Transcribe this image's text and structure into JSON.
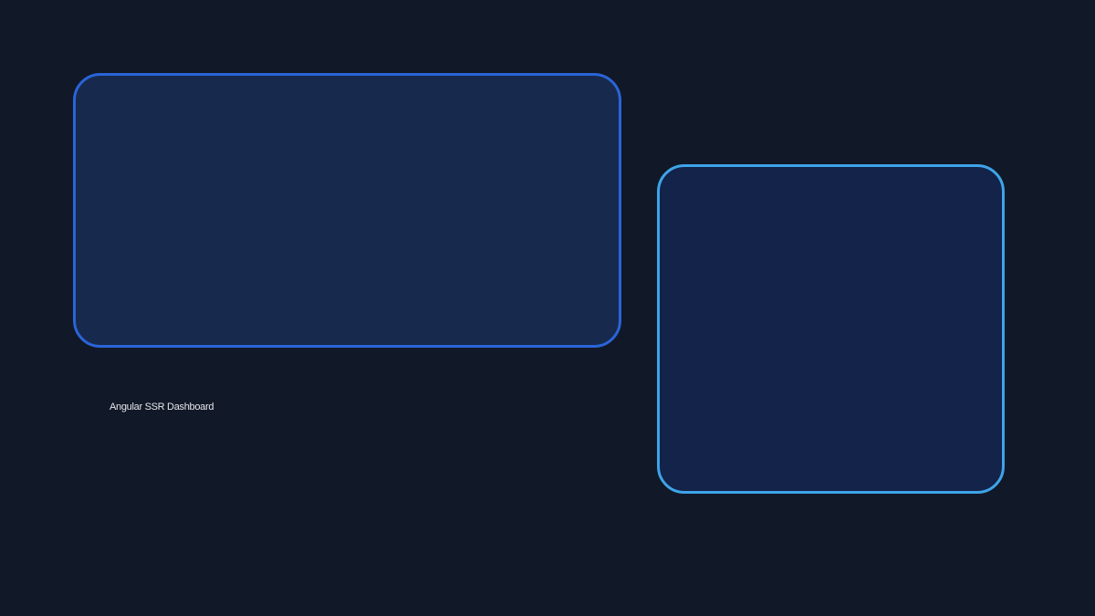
{
  "app": {
    "title": "Angular SSR Dashboard"
  },
  "colors": {
    "background": "#111827",
    "title_text": "#e5e7eb",
    "panel_primary_fill": "#172a4d",
    "panel_primary_border": "#2a64d8",
    "panel_secondary_fill": "#13234a",
    "panel_secondary_border": "#3ea4e8"
  }
}
